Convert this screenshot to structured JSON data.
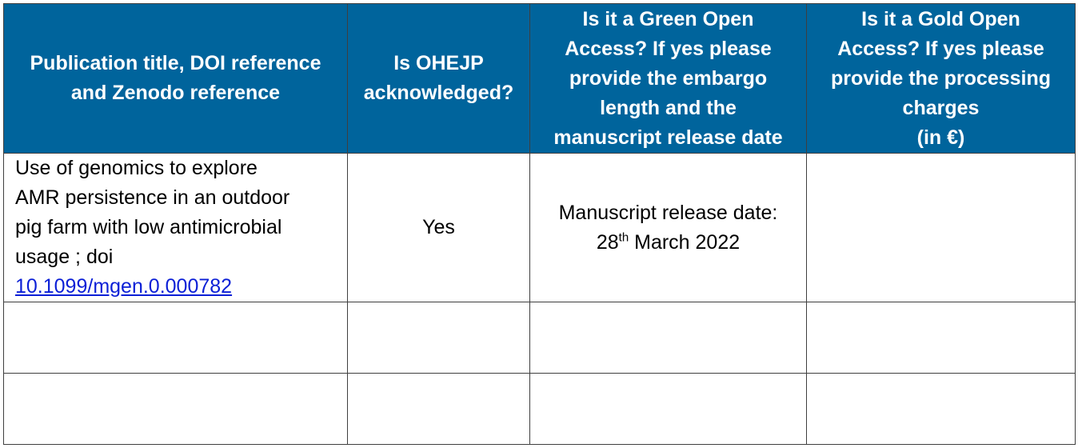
{
  "table": {
    "headers": [
      "Publication title, DOI reference\nand Zenodo reference",
      "Is OHEJP\nacknowledged?",
      "Is it a Green Open\nAccess? If yes please\nprovide the embargo\nlength and the\nmanuscript release date",
      "Is it a Gold Open\nAccess? If yes please\nprovide the processing\ncharges\n(in €)"
    ],
    "row1": {
      "publication_text": "Use of genomics to explore\nAMR persistence in an outdoor\npig farm with low antimicrobial\nusage ; doi",
      "doi_link": "10.1099/mgen.0.000782",
      "acknowledged": "Yes",
      "green_label": "Manuscript release date:",
      "green_day": "28",
      "green_ordinal": "th",
      "green_rest": " March 2022",
      "gold": ""
    }
  },
  "colors": {
    "header_bg": "#00649c",
    "header_text": "#ffffff",
    "link": "#0b1fd6",
    "border": "#3f3f3f"
  }
}
